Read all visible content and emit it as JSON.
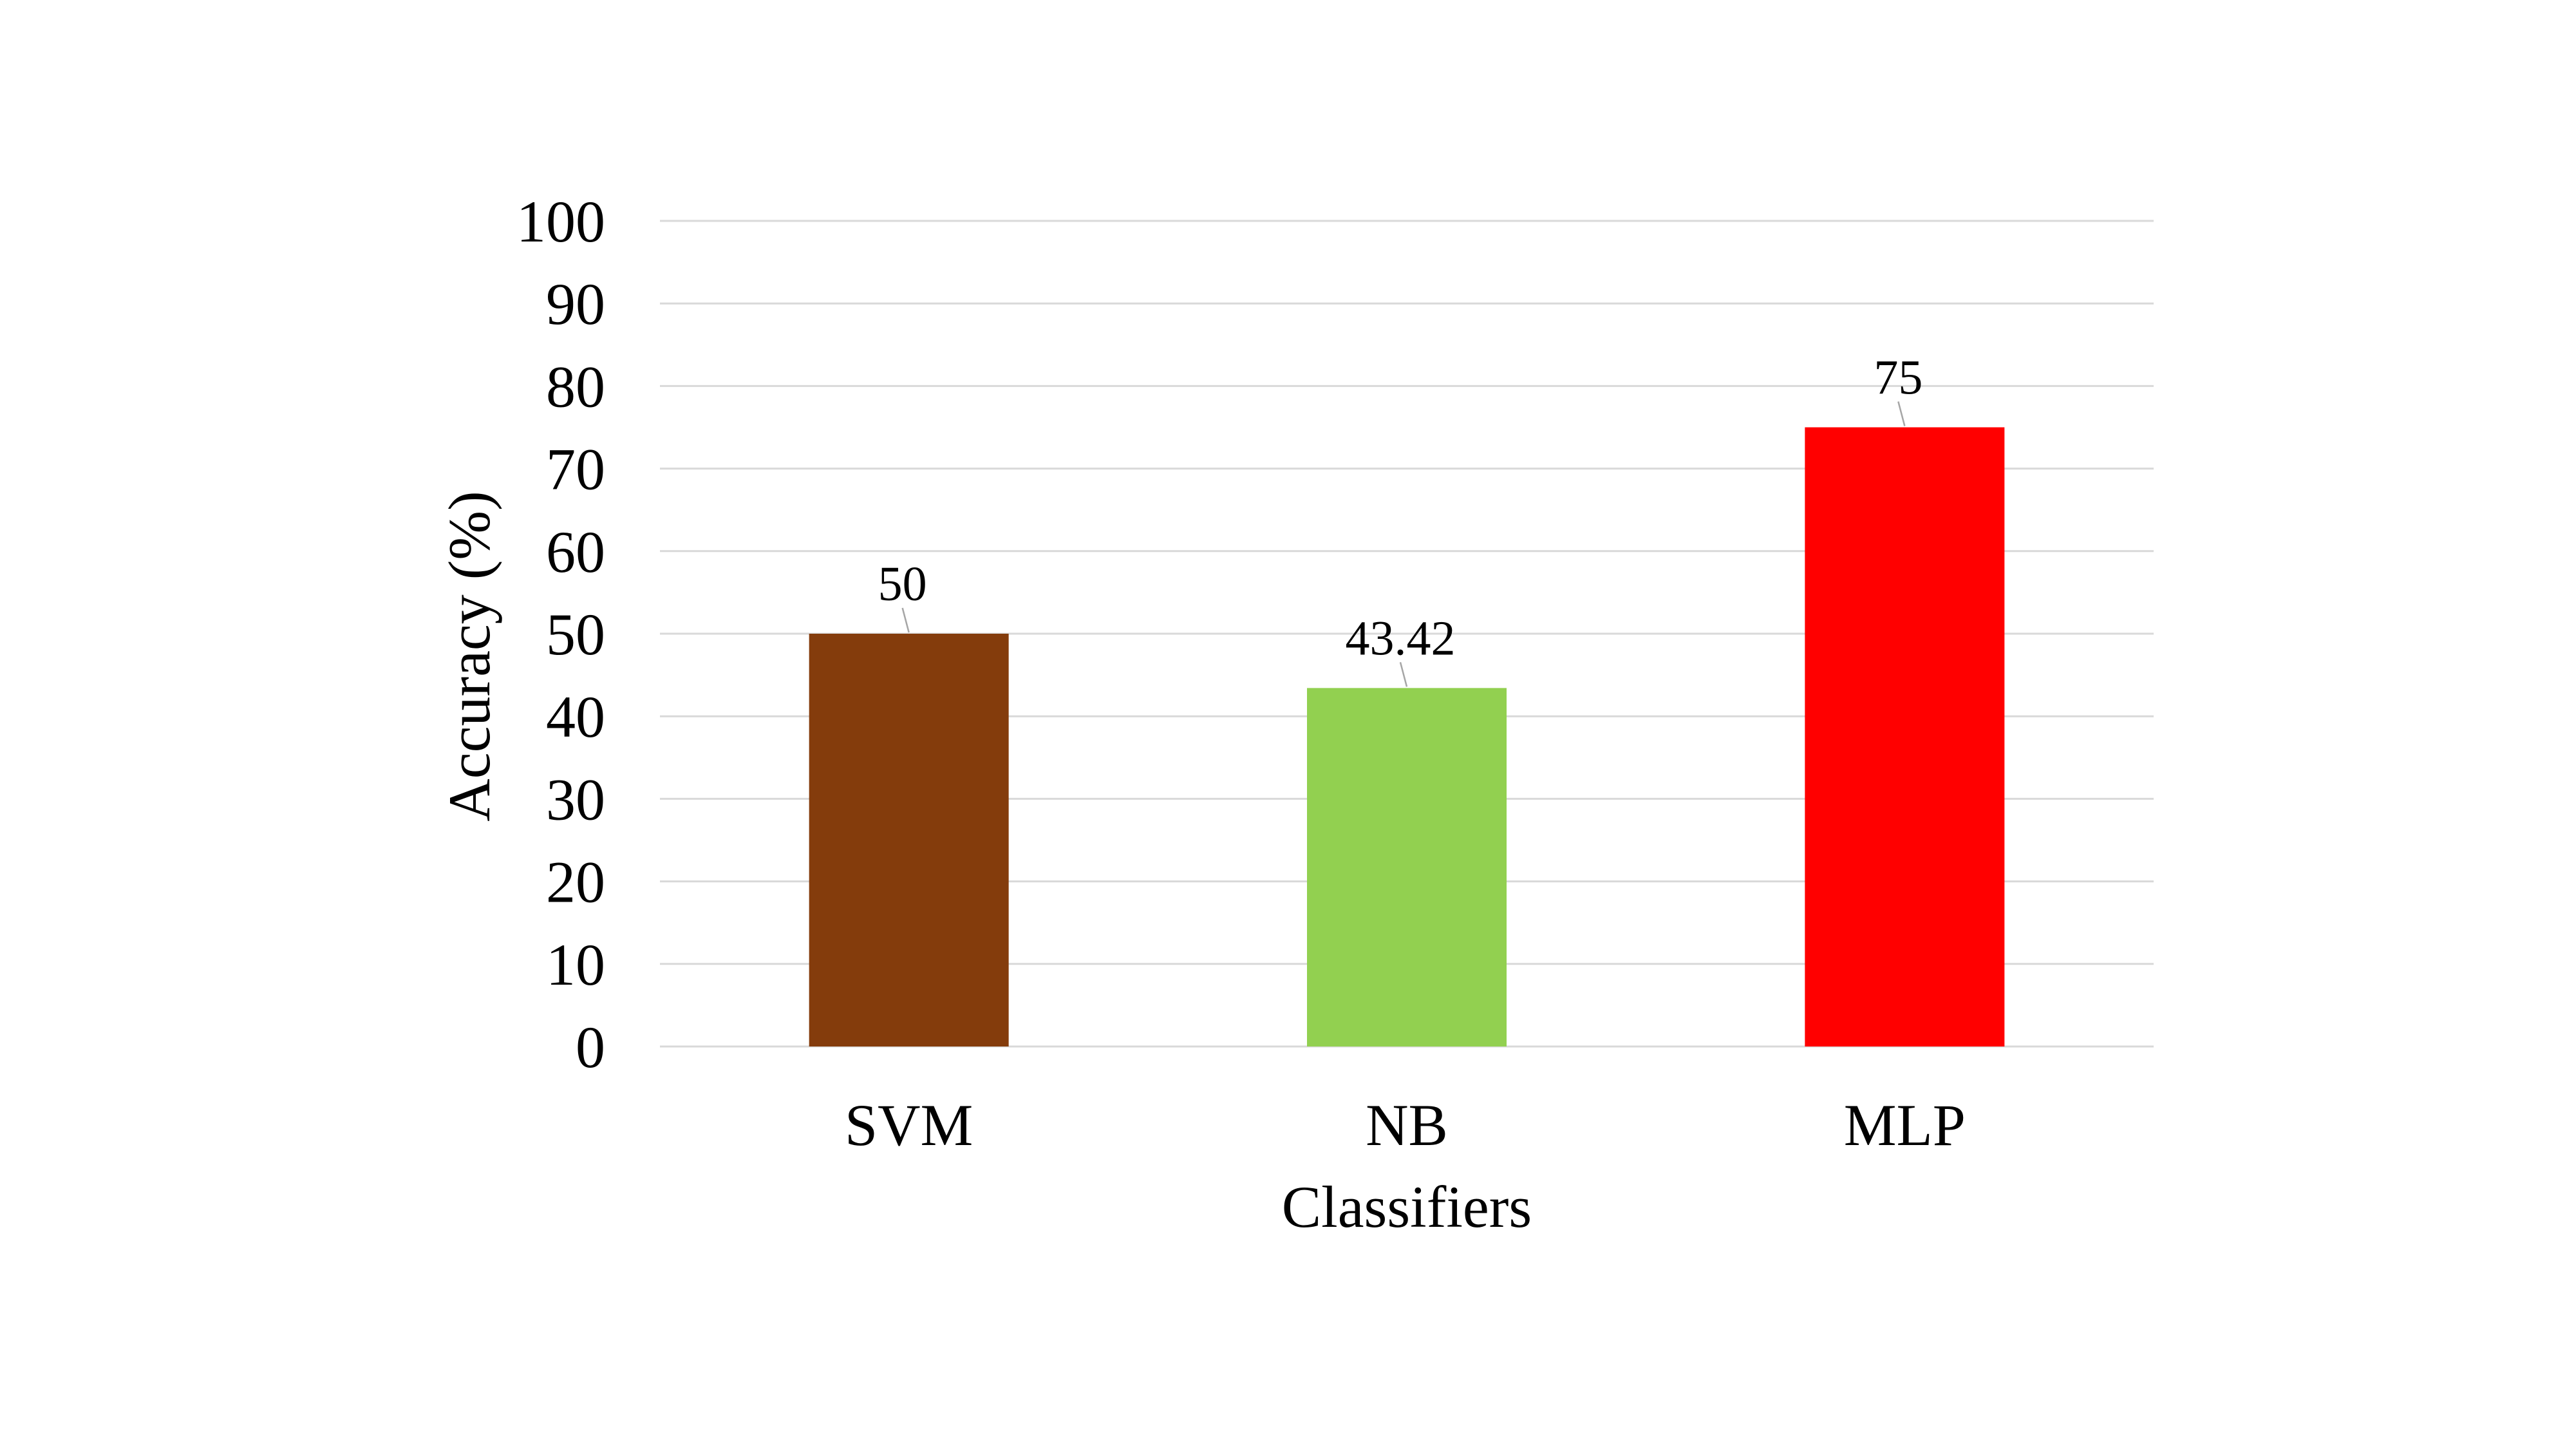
{
  "chart_data": {
    "type": "bar",
    "categories": [
      "SVM",
      "NB",
      "MLP"
    ],
    "series": [
      {
        "values": [
          50,
          43.42,
          75
        ],
        "colors": [
          "#843c0c",
          "#92d050",
          "#ff0000"
        ]
      }
    ],
    "data_labels": [
      "50",
      "43.42",
      "75"
    ],
    "xlabel": "Classifiers",
    "ylabel": "Accuracy (%)",
    "ylim": [
      0,
      100
    ],
    "yticks": [
      0,
      10,
      20,
      30,
      40,
      50,
      60,
      70,
      80,
      90,
      100
    ],
    "grid": true,
    "legend": "none"
  }
}
